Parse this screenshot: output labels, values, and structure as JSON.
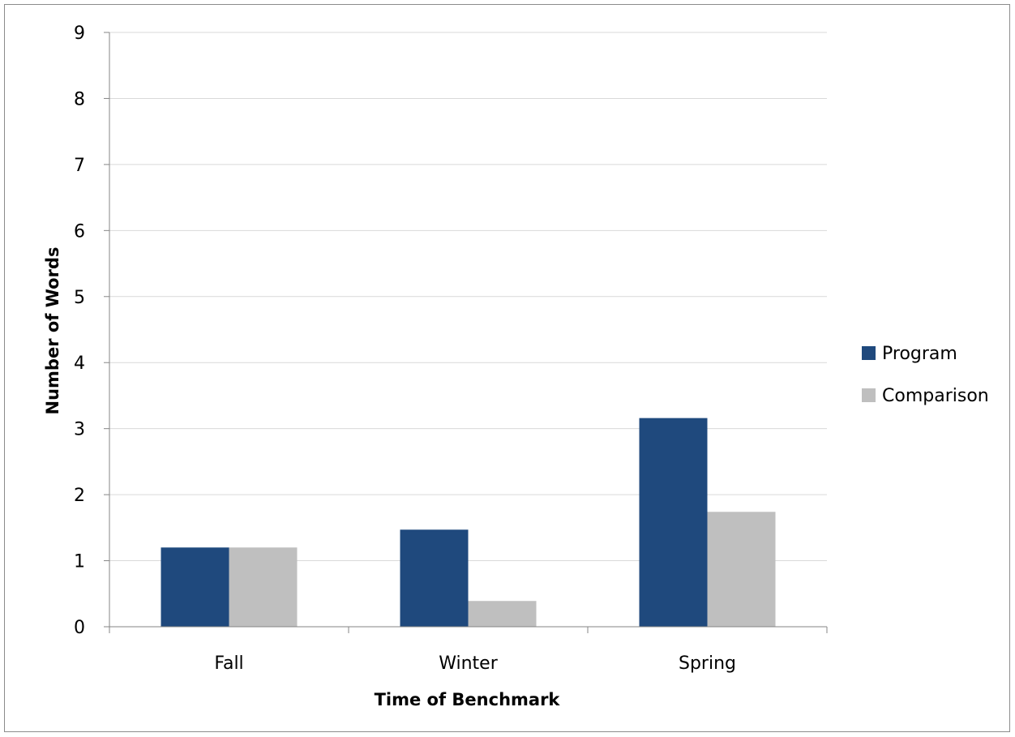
{
  "chart_data": {
    "type": "bar",
    "title": "",
    "xlabel": "Time of Benchmark",
    "ylabel": "Number of Words",
    "categories": [
      "Fall",
      "Winter",
      "Spring"
    ],
    "series": [
      {
        "name": "Program",
        "color": "#1f497d",
        "values": [
          1.2,
          1.47,
          3.16
        ]
      },
      {
        "name": "Comparison",
        "color": "#bfbfbf",
        "values": [
          1.2,
          0.39,
          1.74
        ]
      }
    ],
    "ylim": [
      0,
      9
    ],
    "yticks": [
      "0",
      "1",
      "2",
      "3",
      "4",
      "5",
      "6",
      "7",
      "8",
      "9"
    ],
    "grid": true,
    "legend_position": "right"
  }
}
